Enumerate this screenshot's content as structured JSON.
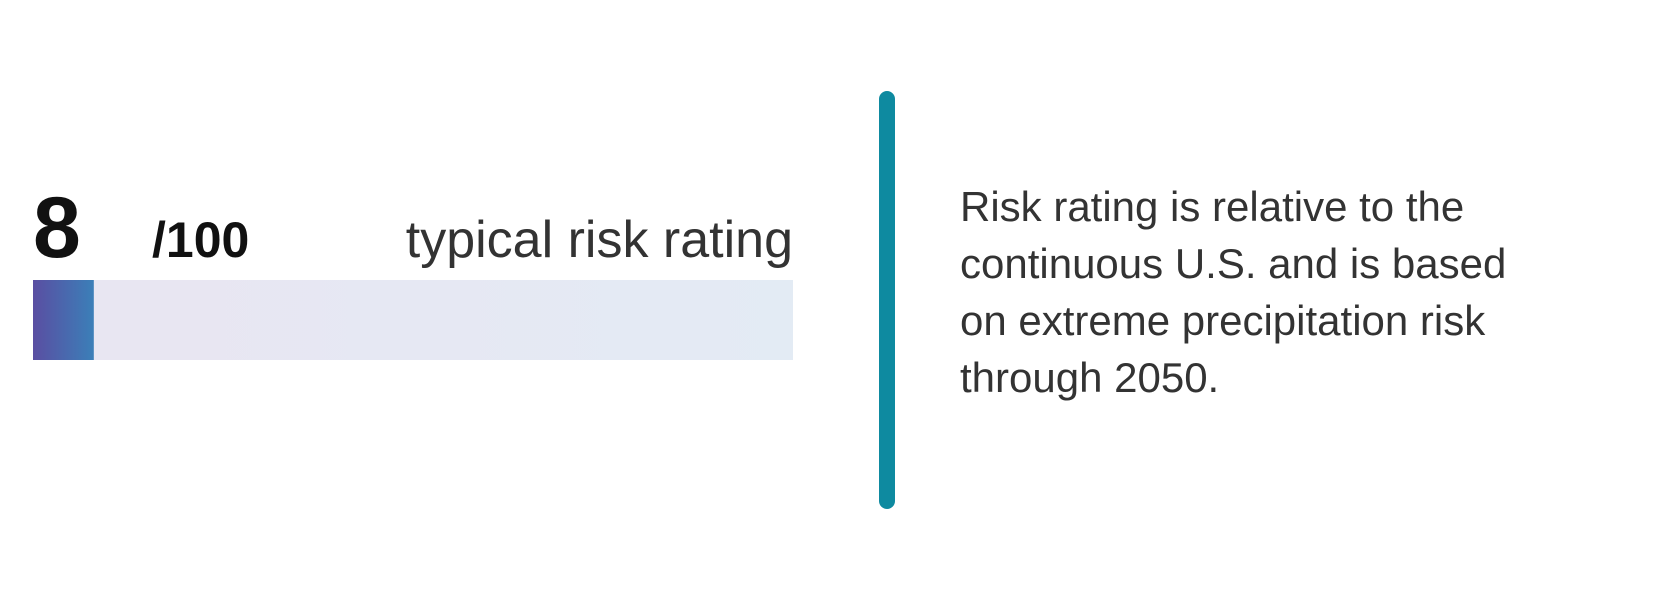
{
  "score": 8,
  "max": {
    "value": 100,
    "label": "/100"
  },
  "rating_label": "typical risk rating",
  "description": [
    "Risk rating is relative to the",
    "continuous U.S. and is based",
    "on extreme precipitation risk",
    "through 2050."
  ]
}
